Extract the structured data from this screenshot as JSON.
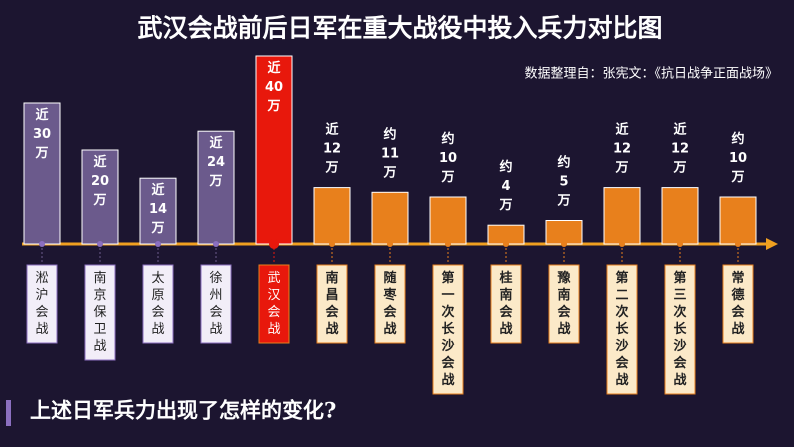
{
  "chart_data": {
    "type": "bar",
    "title": "武汉会战前后日军在重大战役中投入兵力对比图",
    "subtitle": "数据整理自：张宪文：《抗日战争正面战场》",
    "question": "上述日军兵力出现了怎样的变化?",
    "categories": [
      "淞沪会战",
      "南京保卫战",
      "太原会战",
      "徐州会战",
      "武汉会战",
      "南昌会战",
      "随枣会战",
      "第一次长沙会战",
      "桂南会战",
      "豫南会战",
      "第二次长沙会战",
      "第三次长沙会战",
      "常德会战"
    ],
    "values": [
      30,
      20,
      14,
      24,
      40,
      12,
      11,
      10,
      4,
      5,
      12,
      12,
      10
    ],
    "value_labels": [
      "近30万",
      "近20万",
      "近14万",
      "近24万",
      "近40万",
      "近12万",
      "约11万",
      "约10万",
      "约4万",
      "约5万",
      "近12万",
      "近12万",
      "约10万"
    ],
    "colors": [
      "#6b5a8c",
      "#6b5a8c",
      "#6b5a8c",
      "#6b5a8c",
      "#e8180c",
      "#e8801c",
      "#e8801c",
      "#e8801c",
      "#e8801c",
      "#e8801c",
      "#e8801c",
      "#e8801c",
      "#e8801c"
    ]
  }
}
